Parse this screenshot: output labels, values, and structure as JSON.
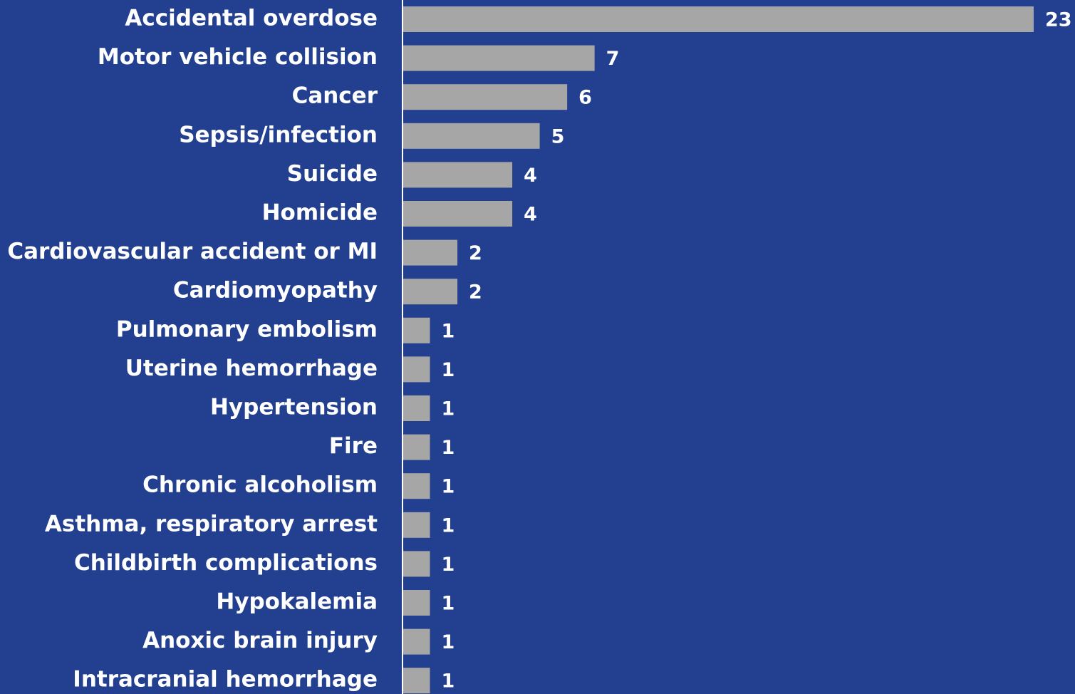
{
  "chart_data": {
    "type": "bar",
    "orientation": "horizontal",
    "color": "#a6a6a6",
    "categories": [
      "Accidental overdose",
      "Motor vehicle collision",
      "Cancer",
      "Sepsis/infection",
      "Suicide",
      "Homicide",
      "Cardiovascular accident or MI",
      "Cardiomyopathy",
      "Pulmonary embolism",
      "Uterine hemorrhage",
      "Hypertension",
      "Fire",
      "Chronic alcoholism",
      "Asthma, respiratory arrest",
      "Childbirth complications",
      "Hypokalemia",
      "Anoxic brain injury",
      "Intracranial hemorrhage"
    ],
    "values": [
      23,
      7,
      6,
      5,
      4,
      4,
      2,
      2,
      1,
      1,
      1,
      1,
      1,
      1,
      1,
      1,
      1,
      1
    ]
  }
}
